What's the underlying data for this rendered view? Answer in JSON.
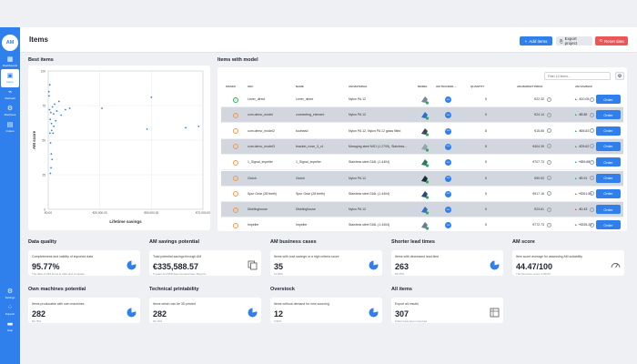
{
  "sidebar": {
    "logo": "AM",
    "items": [
      {
        "label": "Dashboards",
        "icon": "grid-icon"
      },
      {
        "label": "Items",
        "icon": "box-icon"
      },
      {
        "label": "Methods",
        "icon": "chart-icon"
      },
      {
        "label": "Machines",
        "icon": "machine-icon"
      },
      {
        "label": "Orders",
        "icon": "cart-icon"
      },
      {
        "label": "Settings",
        "icon": "gear-icon"
      },
      {
        "label": "Support",
        "icon": "support-icon"
      },
      {
        "label": "Help",
        "icon": "help-icon"
      }
    ]
  },
  "header": {
    "title": "Items",
    "add_label": "Add items",
    "export_label": "Export project",
    "reset_label": "Reset data"
  },
  "best_items": {
    "title": "Best items"
  },
  "chart_data": {
    "type": "scatter",
    "xlabel": "Lifetime savings",
    "ylabel": "AM score",
    "x_ticks": [
      "€0.00",
      "€20,000.00",
      "€50,000.00",
      "€70,000.00"
    ],
    "y_ticks": [
      "100",
      "75",
      "50",
      "25",
      "0"
    ],
    "xlim": [
      0,
      72000
    ],
    "ylim": [
      0,
      100
    ],
    "grid": true,
    "points": [
      [
        300,
        85
      ],
      [
        600,
        72
      ],
      [
        900,
        65
      ],
      [
        1200,
        70
      ],
      [
        1500,
        62
      ],
      [
        2000,
        74
      ],
      [
        2500,
        69
      ],
      [
        3000,
        76
      ],
      [
        4000,
        71
      ],
      [
        5000,
        78
      ],
      [
        800,
        55
      ],
      [
        1100,
        48
      ],
      [
        1400,
        40
      ],
      [
        1800,
        36
      ],
      [
        2200,
        55
      ],
      [
        3500,
        64
      ],
      [
        6000,
        68
      ],
      [
        8000,
        72
      ],
      [
        10000,
        73
      ],
      [
        25000,
        73
      ],
      [
        46000,
        58
      ],
      [
        48000,
        81
      ],
      [
        64000,
        59
      ],
      [
        70000,
        60
      ],
      [
        1000,
        26
      ],
      [
        1300,
        30
      ],
      [
        700,
        90
      ],
      [
        400,
        82
      ],
      [
        1600,
        57
      ],
      [
        2600,
        60
      ]
    ]
  },
  "items_with_model": {
    "title": "Items with model",
    "filter_placeholder": "Filter 10 items...",
    "columns": [
      "Issues",
      "SKU",
      "Name",
      "AM Material",
      "Model",
      "AM Technol...",
      "Quantity",
      "AM Market price",
      "AM Savings"
    ],
    "order_label": "Order",
    "rows": [
      {
        "status": "ok",
        "sku": "Lever_direct",
        "name": "Lever_direct",
        "material": "Nylon PA 12",
        "qty": "5",
        "price": "€22.32",
        "dir": "up",
        "savings": "-€10.05",
        "shaded": false,
        "color": "#7a8699"
      },
      {
        "status": "warn",
        "sku": "com.demo_model",
        "name": "connecting_element",
        "material": "Nylon PA 12",
        "qty": "5",
        "price": "€24.14",
        "dir": "up",
        "savings": "-€8.85",
        "shaded": true,
        "color": "#2f6fd1"
      },
      {
        "status": "warn",
        "sku": "com.demo_model2",
        "name": "toolhead",
        "material": "Nylon PA 12, Nylon PA 12 glass filled",
        "qty": "8",
        "price": "€15.65",
        "dir": "up",
        "savings": "-€65.63",
        "shaded": false,
        "color": "#3c4656"
      },
      {
        "status": "warn",
        "sku": "com.demo_model3",
        "name": "bracket_nose_3_v1",
        "material": "Maraging steel MS1 (1.2709), Stainless...",
        "qty": "8",
        "price": "€404.39",
        "dir": "up",
        "savings": "-€25.62",
        "shaded": true,
        "color": "#9aa2ad"
      },
      {
        "status": "warn",
        "sku": "1_Signal_impeller",
        "name": "1_Signal_impeller",
        "material": "Stainless steel 316L (1.4404)",
        "qty": "5",
        "price": "€707.73",
        "dir": "up",
        "savings": "+€89.68",
        "shaded": false,
        "color": "#2d7a5f"
      },
      {
        "status": "warn",
        "sku": "Clutch",
        "name": "Clutch",
        "material": "Nylon PA 12",
        "qty": "5",
        "price": "€90.53",
        "dir": "up",
        "savings": "-€5.91",
        "shaded": true,
        "color": "#1f2a3a"
      },
      {
        "status": "warn",
        "sku": "Spur Gear (28 teeth)",
        "name": "Spur Gear (28 teeth)",
        "material": "Stainless steel 316L (1.4404)",
        "qty": "5",
        "price": "€917.16",
        "dir": "down",
        "savings": "+€261.56",
        "shaded": false,
        "color": "#2b4a7a"
      },
      {
        "status": "warn",
        "sku": "Diskfinghouse",
        "name": "Diskfinghouse",
        "material": "Nylon PA 12",
        "qty": "5",
        "price": "€23.61",
        "dir": "down",
        "savings": "-€0.43",
        "shaded": true,
        "color": "#3a6fbf"
      },
      {
        "status": "warn",
        "sku": "Impeller",
        "name": "Impeller",
        "material": "Stainless steel 316L (1.4404)",
        "qty": "5",
        "price": "€772.73",
        "dir": "down",
        "savings": "+€335.23",
        "shaded": false,
        "color": "#6f7a8a"
      }
    ]
  },
  "kpis": [
    {
      "title": "Data quality",
      "desc": "Completeness and validity of imported data",
      "value": "95.77%",
      "sub": "The data of 294 items is valid and complete",
      "icon": "pie-icon"
    },
    {
      "title": "AM savings potential",
      "desc": "Total potential savings through AM",
      "value": "€335,588.57",
      "sub": "5 years and 558 days demand item lifecycle",
      "icon": "copy-icon"
    },
    {
      "title": "AM business cases",
      "desc": "Items with cost savings or a high criteria score",
      "value": "35",
      "sub": "11.84%",
      "icon": "pie-icon"
    },
    {
      "title": "Shorter lead times",
      "desc": "Items with decreased lead time",
      "value": "263",
      "sub": "83.65%",
      "icon": "pie-icon"
    },
    {
      "title": "AM score",
      "desc": "Item score average for assessing AM suitability",
      "value": "44.47/100",
      "sub": "The best item score is 89.04",
      "icon": "gauge-icon"
    },
    {
      "title": "Own machines potential",
      "desc": "Items producable with own machines",
      "value": "282",
      "sub": "92.76%",
      "icon": "pie-icon"
    },
    {
      "title": "Technical printability",
      "desc": "Items which can be 3D printed",
      "value": "282",
      "sub": "93.16%",
      "icon": "pie-icon"
    },
    {
      "title": "Overstock",
      "desc": "Items without demand for new sourcing",
      "value": "12",
      "sub": "3.95%",
      "icon": "pie-icon"
    },
    {
      "title": "All items",
      "desc": "Export all results",
      "value": "307",
      "sub": "8 files have been imported",
      "icon": "table-icon"
    }
  ],
  "colors": {
    "accent": "#2f80ed",
    "danger": "#eb5757",
    "ok": "#27ae60",
    "warn": "#f2994a"
  }
}
